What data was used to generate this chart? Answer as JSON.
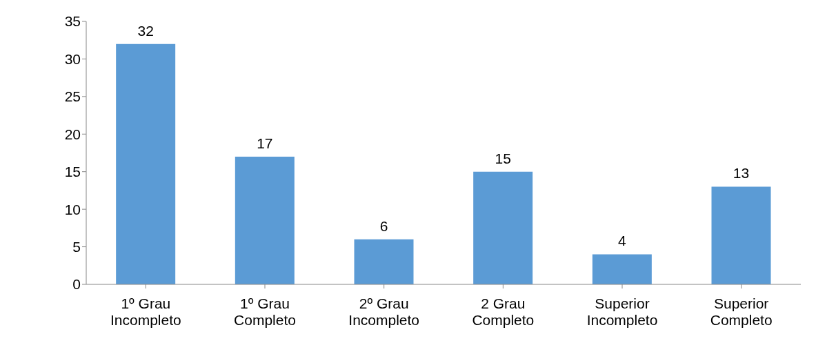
{
  "chart_data": {
    "type": "bar",
    "categories": [
      "1º Grau Incompleto",
      "1º Grau Completo",
      "2º Grau Incompleto",
      "2 Grau Completo",
      "Superior Incompleto",
      "Superior Completo"
    ],
    "values": [
      32,
      17,
      6,
      15,
      4,
      13
    ],
    "color": "#5b9bd5",
    "ylim": [
      0,
      35
    ],
    "yticks": [
      0,
      5,
      10,
      15,
      20,
      25,
      30,
      35
    ],
    "data_labels": true
  }
}
